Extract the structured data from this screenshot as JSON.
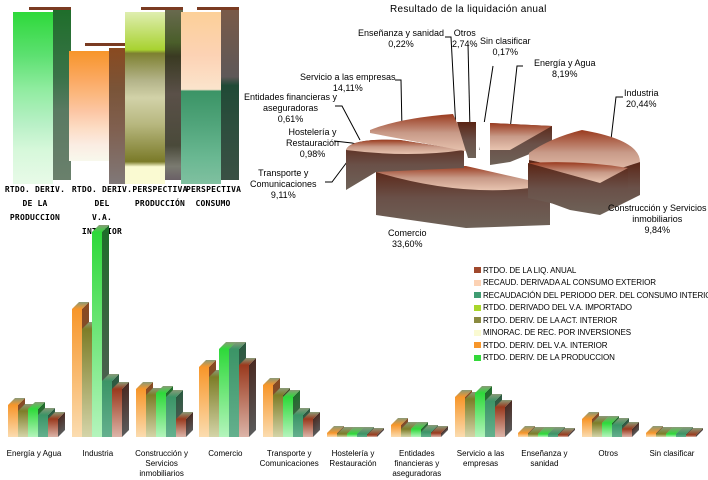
{
  "top_columns": {
    "labels": [
      [
        "RTDO. DERIV. DE LA",
        "PRODUCCION"
      ],
      [
        "RTDO. DERIV. DEL",
        "V.A. INTERIOR"
      ],
      [
        "PERSPECTIVA",
        "PRODUCCIÓN"
      ],
      [
        "PERSPECTIVA",
        "CONSUMO"
      ]
    ]
  },
  "pie": {
    "title": "Resultado de la liquidación anual",
    "slices": [
      {
        "name": "Energía y Agua",
        "pct": "8,19%"
      },
      {
        "name": "Industria",
        "pct": "20,44%"
      },
      {
        "name": "Construcción y Servicios inmobiliarios",
        "pct": "9,84%"
      },
      {
        "name": "Comercio",
        "pct": "33,60%"
      },
      {
        "name": "Transporte y Comunicaciones",
        "pct": "9,11%"
      },
      {
        "name": "Hostelería y Restauración",
        "pct": "0,98%"
      },
      {
        "name": "Entidades financieras y aseguradoras",
        "pct": "0,61%"
      },
      {
        "name": "Servicio a las empresas",
        "pct": "14,11%"
      },
      {
        "name": "Enseñanza y sanidad",
        "pct": "0,22%"
      },
      {
        "name": "Otros",
        "pct": "2,74%"
      },
      {
        "name": "Sin clasificar",
        "pct": "0,17%"
      }
    ]
  },
  "legend": {
    "items": [
      {
        "label": "RTDO. DE LA LIQ. ANUAL",
        "color": "#a0482c"
      },
      {
        "label": "RECAUD. DERIVADA AL CONSUMO EXTERIOR",
        "color": "#fcd2b4"
      },
      {
        "label": "RECAUDACIÓN DEL PERIODO DER. DEL CONSUMO INTERIOR",
        "color": "#3f9c72"
      },
      {
        "label": "RTDO. DERIVADO DEL V.A. IMPORTADO",
        "color": "#a8d62a"
      },
      {
        "label": "RTDO. DERIV. DE LA ACT. INTERIOR",
        "color": "#8a8a40"
      },
      {
        "label": "MINORAC. DE REC. POR INVERSIONES",
        "color": "#fafad2"
      },
      {
        "label": "RTDO. DERIV. DEL V.A. INTERIOR",
        "color": "#f7962a"
      },
      {
        "label": "RTDO. DERIV. DE LA PRODUCCION",
        "color": "#33d93a"
      }
    ]
  },
  "bar_categories": [
    "Energía y Agua",
    "Industria",
    "Construcción y Servicios inmobiliarios",
    "Comercio",
    "Transporte y Comunicaciones",
    "Hostelería y Restauración",
    "Entidades financieras y aseguradoras",
    "Servicio a las empresas",
    "Enseñanza y sanidad",
    "Otros",
    "Sin clasificar"
  ],
  "chart_data": [
    {
      "type": "bar",
      "title": "",
      "categories": [
        "RTDO. DERIV. DE LA PRODUCCION",
        "RTDO. DERIV. DEL V.A. INTERIOR",
        "PERSPECTIVA PRODUCCIÓN",
        "PERSPECTIVA CONSUMO"
      ],
      "series_note": "stacked columns composed of sector segments",
      "values": [
        100,
        77,
        100,
        100
      ],
      "ylim": [
        0,
        100
      ]
    },
    {
      "type": "pie",
      "title": "Resultado de la liquidación anual",
      "categories": [
        "Energía y Agua",
        "Industria",
        "Construcción y Servicios inmobiliarios",
        "Comercio",
        "Transporte y Comunicaciones",
        "Hostelería y Restauración",
        "Entidades financieras y aseguradoras",
        "Servicio a las empresas",
        "Enseñanza y sanidad",
        "Otros",
        "Sin clasificar"
      ],
      "values": [
        8.19,
        20.44,
        9.84,
        33.6,
        9.11,
        0.98,
        0.61,
        14.11,
        0.22,
        2.74,
        0.17
      ]
    },
    {
      "type": "bar",
      "title": "",
      "categories": [
        "Energía y Agua",
        "Industria",
        "Construcción y Servicios inmobiliarios",
        "Comercio",
        "Transporte y Comunicaciones",
        "Hostelería y Restauración",
        "Entidades financieras y aseguradoras",
        "Servicio a las empresas",
        "Enseñanza y sanidad",
        "Otros",
        "Sin clasificar"
      ],
      "series": [
        {
          "name": "RTDO. DERIV. DEL V.A. INTERIOR",
          "color": "#f7962a",
          "values": [
            32,
            128,
            48,
            70,
            52,
            4,
            12,
            40,
            4,
            18,
            4
          ]
        },
        {
          "name": "RTDO. DERIV. DE LA ACT. INTERIOR",
          "color": "#8a8a40",
          "values": [
            26,
            108,
            42,
            60,
            42,
            3,
            8,
            38,
            3,
            14,
            3
          ]
        },
        {
          "name": "RTDO. DERIV. DE LA PRODUCCION",
          "color": "#33d93a",
          "values": [
            28,
            205,
            44,
            88,
            40,
            3,
            8,
            44,
            3,
            14,
            3
          ]
        },
        {
          "name": "RECAUDACIÓN DEL PERIODO DER. DEL CONSUMO INTERIOR",
          "color": "#3f9c72",
          "values": [
            22,
            56,
            40,
            88,
            22,
            3,
            5,
            36,
            3,
            12,
            3
          ]
        },
        {
          "name": "RTDO. DE LA LIQ. ANUAL",
          "color": "#a0482c",
          "values": [
            18,
            48,
            18,
            72,
            18,
            2,
            4,
            30,
            2,
            8,
            2
          ]
        }
      ],
      "xlabel": "",
      "ylabel": "",
      "grid": false,
      "legend_position": "right"
    }
  ]
}
